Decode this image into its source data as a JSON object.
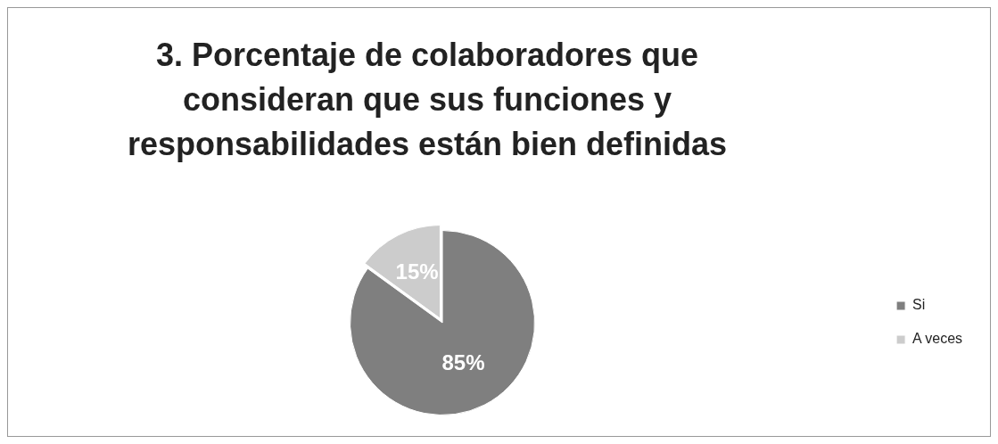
{
  "chart_data": {
    "type": "pie",
    "title": "3. Porcentaje de colaboradores que consideran que sus funciones y responsabilidades están bien definidas",
    "categories": [
      "Si",
      "A veces"
    ],
    "values": [
      85,
      15
    ],
    "colors": [
      "#7f7f7f",
      "#cccccc"
    ],
    "value_labels": [
      "85%",
      "15%"
    ],
    "legend": "right"
  }
}
